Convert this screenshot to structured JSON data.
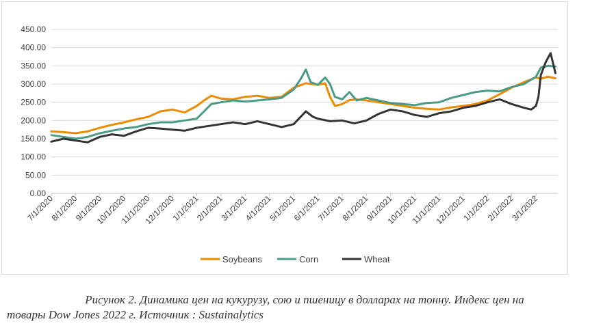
{
  "colors": {
    "soybeans": "#ED8B00",
    "corn": "#4A9A86",
    "wheat": "#333333",
    "grid": "#d9d9d9",
    "axis": "#595959"
  },
  "caption": {
    "line1": "Рисунок 2. Динамика цен на кукурузу, сою и пшеницу в долларах на тонну. Индекс цен на",
    "line2": "товары Dow Jones 2022 г. Источник : Sustainalytics"
  },
  "chart_data": {
    "type": "line",
    "title": "",
    "xlabel": "",
    "ylabel": "",
    "ylim": [
      0,
      450
    ],
    "yticks": [
      "0.00",
      "50.00",
      "100.00",
      "150.00",
      "200.00",
      "250.00",
      "300.00",
      "350.00",
      "400.00",
      "450.00"
    ],
    "xlim": [
      0,
      20.9
    ],
    "xticks": [
      "7/1/2020",
      "8/1/2020",
      "9/1/2020",
      "10/1/2020",
      "11/1/2020",
      "12/1/2020",
      "1/1/2021",
      "2/1/2021",
      "3/1/2021",
      "4/1/2021",
      "5/1/2021",
      "6/1/2021",
      "7/1/2021",
      "8/1/2021",
      "9/1/2021",
      "10/1/2021",
      "11/1/2021",
      "12/1/2021",
      "1/1/2022",
      "2/1/2022",
      "3/1/2022"
    ],
    "grid": true,
    "legend_position": "bottom",
    "series": [
      {
        "name": "Soybeans",
        "x": [
          0,
          0.5,
          1,
          1.5,
          2,
          2.5,
          3,
          3.5,
          4,
          4.5,
          5,
          5.5,
          6,
          6.3,
          6.6,
          7,
          7.5,
          8,
          8.5,
          9,
          9.5,
          10,
          10.5,
          11,
          11.3,
          11.5,
          11.7,
          12,
          12.3,
          12.6,
          13,
          13.5,
          14,
          14.5,
          15,
          15.5,
          16,
          16.5,
          17,
          17.5,
          18,
          18.5,
          19,
          19.5,
          20,
          20.2,
          20.5,
          20.8
        ],
        "y": [
          170,
          168,
          165,
          170,
          180,
          188,
          195,
          203,
          210,
          225,
          230,
          222,
          240,
          255,
          268,
          260,
          258,
          265,
          268,
          262,
          265,
          290,
          302,
          298,
          302,
          265,
          240,
          245,
          256,
          258,
          255,
          250,
          245,
          240,
          235,
          232,
          230,
          236,
          240,
          245,
          255,
          272,
          290,
          305,
          318,
          315,
          320,
          316
        ]
      },
      {
        "name": "Corn",
        "x": [
          0,
          0.5,
          1,
          1.5,
          2,
          2.5,
          3,
          3.5,
          4,
          4.5,
          5,
          5.5,
          6,
          6.3,
          6.6,
          7,
          7.5,
          8,
          8.5,
          9,
          9.5,
          10,
          10.3,
          10.5,
          10.7,
          11,
          11.3,
          11.5,
          11.7,
          12,
          12.3,
          12.6,
          13,
          13.5,
          14,
          14.5,
          15,
          15.5,
          16,
          16.5,
          17,
          17.5,
          18,
          18.5,
          19,
          19.5,
          20,
          20.2,
          20.5,
          20.8
        ],
        "y": [
          160,
          155,
          150,
          155,
          165,
          172,
          178,
          182,
          190,
          195,
          195,
          200,
          205,
          225,
          245,
          250,
          255,
          252,
          255,
          258,
          262,
          285,
          315,
          340,
          305,
          298,
          318,
          300,
          265,
          258,
          278,
          255,
          262,
          255,
          248,
          245,
          242,
          248,
          250,
          262,
          270,
          278,
          282,
          280,
          292,
          300,
          320,
          345,
          350,
          348
        ]
      },
      {
        "name": "Wheat",
        "x": [
          0,
          0.5,
          1,
          1.5,
          2,
          2.5,
          3,
          3.5,
          4,
          4.5,
          5,
          5.5,
          6,
          6.5,
          7,
          7.5,
          8,
          8.5,
          9,
          9.5,
          10,
          10.5,
          10.8,
          11,
          11.5,
          12,
          12.5,
          13,
          13.5,
          14,
          14.5,
          15,
          15.5,
          16,
          16.5,
          17,
          17.5,
          18,
          18.5,
          19,
          19.5,
          19.8,
          20,
          20.1,
          20.2,
          20.4,
          20.6,
          20.8
        ],
        "y": [
          142,
          150,
          145,
          140,
          155,
          162,
          158,
          170,
          180,
          178,
          175,
          172,
          180,
          185,
          190,
          195,
          190,
          198,
          190,
          182,
          190,
          225,
          210,
          205,
          198,
          200,
          192,
          200,
          218,
          230,
          225,
          215,
          210,
          220,
          225,
          235,
          240,
          250,
          258,
          245,
          235,
          230,
          240,
          265,
          325,
          360,
          385,
          330
        ]
      }
    ]
  }
}
